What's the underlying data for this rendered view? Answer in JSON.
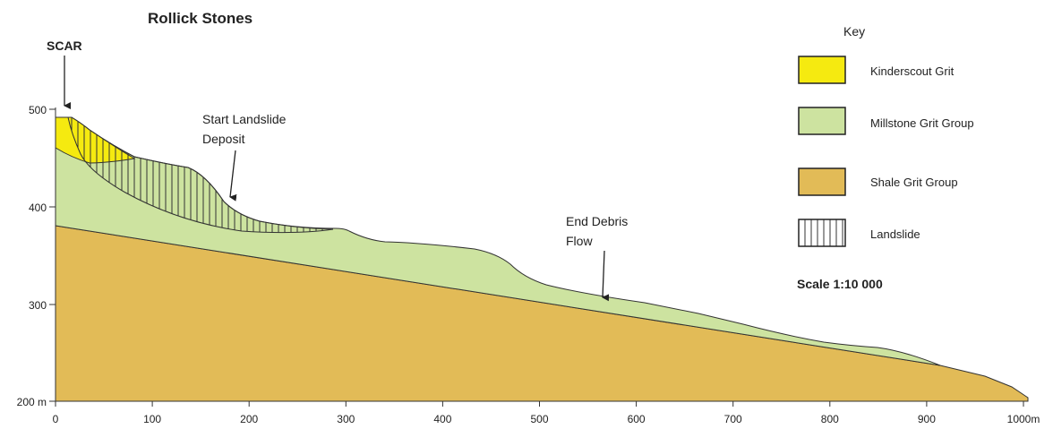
{
  "title": "Rollick Stones",
  "annotations": [
    {
      "lines": [
        "SCAR"
      ]
    },
    {
      "lines": [
        "Start Landslide",
        "Deposit"
      ]
    },
    {
      "lines": [
        "End Debris",
        "Flow"
      ]
    }
  ],
  "y_axis": {
    "ticks": [
      "500",
      "400",
      "300",
      "200 m"
    ]
  },
  "x_axis": {
    "ticks": [
      "0",
      "100",
      "200",
      "300",
      "400",
      "500",
      "600",
      "700",
      "800",
      "900",
      "1000m"
    ]
  },
  "key": {
    "title": "Key",
    "items": [
      {
        "label": "Kinderscout Grit"
      },
      {
        "label": "Millstone Grit Group"
      },
      {
        "label": "Shale Grit Group"
      },
      {
        "label": "Landslide"
      }
    ],
    "scale": "Scale 1:10 000"
  }
}
